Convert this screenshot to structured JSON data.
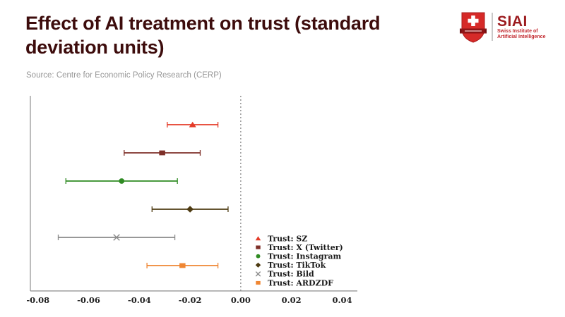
{
  "header": {
    "title": "Effect of AI treatment on trust (standard deviation units)",
    "title_lines": [
      "Effect of AI treatment on trust (standard",
      "deviation units)"
    ],
    "source_text": "Source: Centre for Economic Policy Research (CERP)",
    "title_color": "#3d0c0c",
    "source_color": "#979797"
  },
  "logo": {
    "acronym": "SIAI",
    "subtitle_line1": "Swiss Institute of",
    "subtitle_line2": "Artificial Intelligence",
    "brand_color": "#9c1b1f",
    "shield_color": "#d62a28",
    "banner_color": "#8f1416",
    "icon": "swiss-shield-icon"
  },
  "chart_data": {
    "type": "scatter",
    "subtype": "coefficient-plot-with-95ci",
    "title": "Effect of AI treatment on trust (standard deviation units)",
    "xlabel": "",
    "ylabel": "",
    "xlim": [
      -0.083,
      0.046
    ],
    "x_ticks": [
      -0.08,
      -0.06,
      -0.04,
      -0.02,
      0.0,
      0.02,
      0.04
    ],
    "x_tick_labels": [
      "-0.08",
      "-0.06",
      "-0.04",
      "-0.02",
      "0.00",
      "0.02",
      "0.04"
    ],
    "zero_reference_line": 0.0,
    "grid": false,
    "legend_position": "inside-lower-right",
    "series": [
      {
        "name": "Trust: SZ",
        "marker": "triangle-up",
        "color": "#e43b28",
        "estimate": -0.019,
        "ci_low": -0.029,
        "ci_high": -0.009
      },
      {
        "name": "Trust: X (Twitter)",
        "marker": "square",
        "color": "#7e2f28",
        "estimate": -0.031,
        "ci_low": -0.046,
        "ci_high": -0.016
      },
      {
        "name": "Trust: Instagram",
        "marker": "circle",
        "color": "#2f8b23",
        "estimate": -0.047,
        "ci_low": -0.069,
        "ci_high": -0.025
      },
      {
        "name": "Trust: TikTok",
        "marker": "diamond",
        "color": "#4e3b12",
        "estimate": -0.02,
        "ci_low": -0.035,
        "ci_high": -0.005
      },
      {
        "name": "Trust: Bild",
        "marker": "x",
        "color": "#8a8a8a",
        "estimate": -0.049,
        "ci_low": -0.072,
        "ci_high": -0.026
      },
      {
        "name": "Trust: ARDZDF",
        "marker": "square",
        "color": "#ef8632",
        "estimate": -0.023,
        "ci_low": -0.037,
        "ci_high": -0.009
      }
    ],
    "axis_color": "#8c8c8c",
    "spine_color": "#a6a6a6",
    "zero_line_color": "#666666",
    "tick_label_color": "#222222",
    "legend_text_color": "#1a1a1a"
  }
}
